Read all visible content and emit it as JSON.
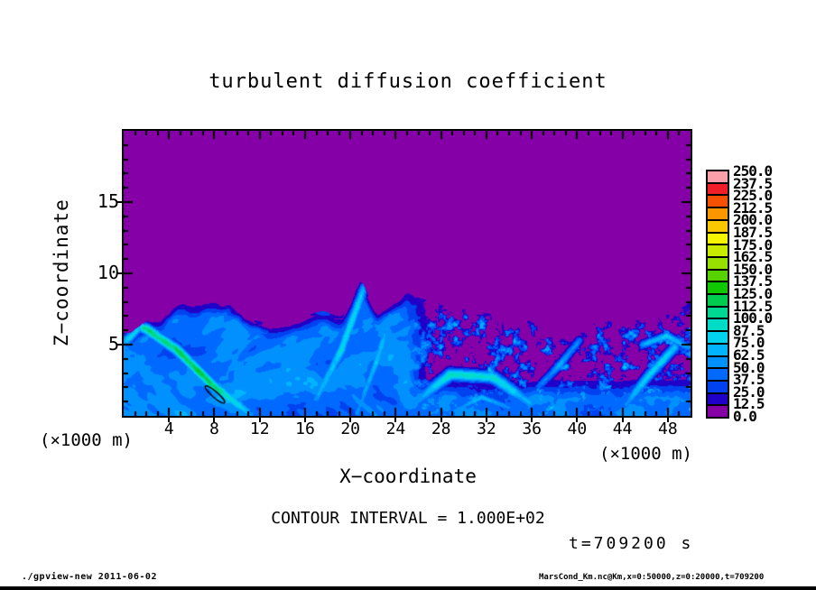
{
  "chart": {
    "title": "turbulent diffusion coefficient",
    "xlabel": "X−coordinate",
    "ylabel": "Z−coordinate",
    "axis_unit": "(×1000 m)",
    "contour_note": "CONTOUR INTERVAL = 1.000E+02",
    "time_label": "t=709200 s"
  },
  "footer": {
    "left": "./gpview-new  2011-06-02",
    "right": "MarsCond_Km.nc@Km,x=0:50000,z=0:20000,t=709200"
  },
  "chart_data": {
    "type": "heatmap",
    "title": "turbulent diffusion coefficient",
    "xlabel": "X−coordinate (×1000 m)",
    "ylabel": "Z−coordinate (×1000 m)",
    "x_range": [
      0,
      50
    ],
    "z_range": [
      0,
      20
    ],
    "x_major_ticks": [
      4,
      8,
      12,
      16,
      20,
      24,
      28,
      32,
      36,
      40,
      44,
      48
    ],
    "x_minor_tick_step": 1,
    "y_major_ticks": [
      5,
      10,
      15
    ],
    "y_minor_tick_step": 1,
    "levels": [
      0.0,
      12.5,
      25.0,
      37.5,
      50.0,
      62.5,
      75.0,
      87.5,
      100.0,
      112.5,
      125.0,
      137.5,
      150.0,
      162.5,
      175.0,
      187.5,
      200.0,
      212.5,
      225.0,
      237.5,
      250.0
    ],
    "colorbar_labels": [
      "0.0",
      "12.5",
      "25.0",
      "37.5",
      "50.0",
      "62.5",
      "75.0",
      "87.5",
      "100.0",
      "112.5",
      "125.0",
      "137.5",
      "150.0",
      "162.5",
      "175.0",
      "187.5",
      "200.0",
      "212.5",
      "225.0",
      "237.5",
      "250.0"
    ],
    "colormap": [
      "#8500a6",
      "#2000c8",
      "#0041f0",
      "#0069ff",
      "#0091ff",
      "#00b4ff",
      "#00d2f0",
      "#00dcc8",
      "#00d791",
      "#00cd50",
      "#0fc800",
      "#55d200",
      "#96e100",
      "#c8eb00",
      "#f5f500",
      "#fac800",
      "#fa9600",
      "#f55000",
      "#f01e28",
      "#fba0aa"
    ],
    "colorbar_position": "right",
    "grid": false,
    "contour_interval": "1.000E+02",
    "time_seconds": 709200,
    "field_summary": "Diffusion coefficient is ~0 (purple, below 12.5) above a wavy boundary-layer top at z≈7–10 (×1000 m); below it turbulent eddies of 12.5–75 (blue–cyan); bright streaks reach 75–115, with one closed 100-level contour loop on the bright diagonal streak near x≈8, z≈1.5; speckled detached eddies over x≈26–50 between z≈3–8."
  }
}
